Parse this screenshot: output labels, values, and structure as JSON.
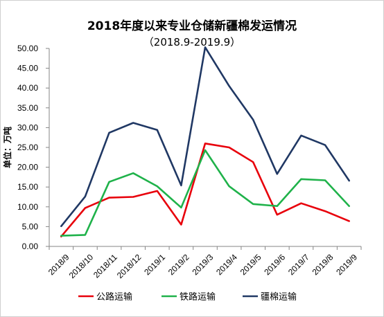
{
  "chart_data": {
    "type": "line",
    "title": "2018年度以来专业仓储新疆棉发运情况",
    "subtitle": "（2018.9-2019.9）",
    "ylabel": "单位：万吨",
    "xlabel": "",
    "ylim": [
      0,
      50
    ],
    "ytick_step": 5,
    "ytick_labels": [
      "0.00",
      "5.00",
      "10.00",
      "15.00",
      "20.00",
      "25.00",
      "30.00",
      "35.00",
      "40.00",
      "45.00",
      "50.00"
    ],
    "categories": [
      "2018/9",
      "2018/10",
      "2018/11",
      "2018/12",
      "2019/1",
      "2019/2",
      "2019/3",
      "2019/4",
      "2019/5",
      "2019/6",
      "2019/7",
      "2019/8",
      "2019/9"
    ],
    "grid": false,
    "legend_position": "bottom",
    "series": [
      {
        "name": "公路运输",
        "color": "#e8000b",
        "values": [
          2.5,
          9.7,
          12.3,
          12.5,
          14.0,
          5.5,
          26.0,
          25.0,
          21.3,
          8.0,
          10.9,
          8.9,
          6.4
        ]
      },
      {
        "name": "铁路运输",
        "color": "#1fb24a",
        "values": [
          2.7,
          2.9,
          16.3,
          18.5,
          15.2,
          9.8,
          24.3,
          15.2,
          10.7,
          10.2,
          17.0,
          16.7,
          10.2
        ]
      },
      {
        "name": "疆棉运输",
        "color": "#203864",
        "values": [
          5.1,
          12.6,
          28.7,
          31.2,
          29.4,
          15.4,
          50.3,
          40.5,
          32.0,
          18.3,
          28.0,
          25.6,
          16.6
        ]
      }
    ]
  }
}
